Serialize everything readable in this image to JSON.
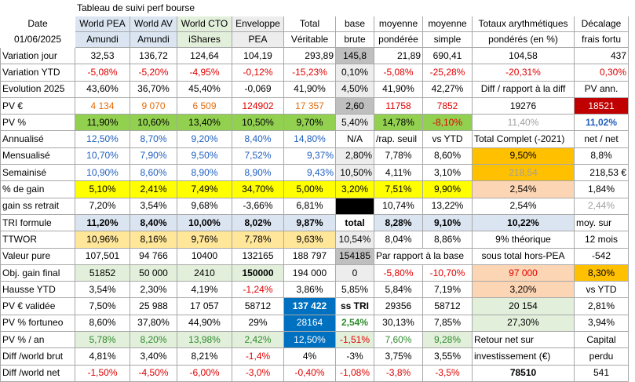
{
  "title": "Tableau de suivi perf bourse",
  "header": {
    "r1": [
      "Date",
      "World PEA",
      "World AV",
      "World CTO",
      "Enveloppe",
      "Total",
      "base",
      "moyenne",
      "moyenne",
      "Totaux arythmétiques",
      "Décalage"
    ],
    "r2": [
      "01/06/2025",
      "Amundi",
      "Amundi",
      "iShares",
      "PEA",
      "Véritable",
      "brute",
      "pondérée",
      "simple",
      "pondérés (en %)",
      "frais fortu"
    ]
  },
  "rows": [
    [
      "Variation jour",
      "32,53",
      "136,72",
      "124,64",
      "104,19",
      "293,89",
      "145,8",
      "21,89",
      "690,41",
      "104,58",
      "437"
    ],
    [
      "Variation YTD",
      "-5,08%",
      "-5,20%",
      "-4,95%",
      "-0,12%",
      "-15,23%",
      "0,10%",
      "-5,08%",
      "-25,28%",
      "-20,31%",
      "0,30%"
    ],
    [
      "Evolution 2025",
      "43,60%",
      "36,70%",
      "45,40%",
      "-0,069",
      "41,90%",
      "4,50%",
      "41,90%",
      "42,27%",
      "Diff / rapport à la diff",
      "PV ann."
    ],
    [
      "PV €",
      "4 134",
      "9 070",
      "6 509",
      "124902",
      "17 357",
      "2,60",
      "11758",
      "7852",
      "19276",
      "18521"
    ],
    [
      "PV %",
      "11,90%",
      "10,60%",
      "13,40%",
      "10,50%",
      "9,70%",
      "5,40%",
      "14,78%",
      "-8,10%",
      "11,40%",
      "11,02%"
    ],
    [
      "Annualisé",
      "12,50%",
      "8,70%",
      "9,20%",
      "8,40%",
      "14,80%",
      "N/A",
      "/rap. seuil",
      "vs YTD",
      "Total Complet (-2021)",
      "net / net"
    ],
    [
      "Mensualisé",
      "10,70%",
      "7,90%",
      "9,50%",
      "7,52%",
      "9,37%",
      "2,80%",
      "7,78%",
      "8,60%",
      "9,50%",
      "8,8%"
    ],
    [
      "Semainisé",
      "10,90%",
      "8,60%",
      "8,90%",
      "8,90%",
      "9,43%",
      "10,50%",
      "4,11%",
      "3,10%",
      "218,54",
      "218,53 €"
    ],
    [
      "% de gain",
      "5,10%",
      "2,41%",
      "7,49%",
      "34,70%",
      "5,00%",
      "3,20%",
      "7,51%",
      "9,90%",
      "2,54%",
      "1,84%"
    ],
    [
      "gain ss retrait",
      "7,20%",
      "3,54%",
      "9,68%",
      "-3,66%",
      "6,81%",
      "",
      "10,74%",
      "13,22%",
      "2,54%",
      "2,44%"
    ],
    [
      "TRI formule",
      "11,20%",
      "8,40%",
      "10,00%",
      "8,02%",
      "9,87%",
      "total",
      "8,28%",
      "9,10%",
      "10,22%",
      "moy. sur"
    ],
    [
      "TTWOR",
      "10,96%",
      "8,16%",
      "9,76%",
      "7,78%",
      "9,63%",
      "10,54%",
      "8,04%",
      "8,86%",
      "9% théorique",
      "12 mois"
    ],
    [
      "Valeur pure",
      "107,501",
      "94 766",
      "10400",
      "132165",
      "188 797",
      "154185",
      "Par rapport à la base",
      "",
      "sous total hors-PEA",
      "-542"
    ],
    [
      "Obj. gain final",
      "51852",
      "50 000",
      "2410",
      "150000",
      "194 000",
      "0",
      "-5,80%",
      "-10,70%",
      "97 000",
      "8,30%"
    ],
    [
      "Hausse YTD",
      "3,54%",
      "2,30%",
      "4,19%",
      "-1,24%",
      "3,86%",
      "5,85%",
      "5,84%",
      "7,19%",
      "3,20%",
      "vs YTD"
    ],
    [
      "PV € validée",
      "7,50%",
      "25 988",
      "17 057",
      "58712",
      "137 422",
      "ss TRI",
      "29356",
      "58712",
      "20 154",
      "2,81%"
    ],
    [
      "PV % fortuneo",
      "8,60%",
      "37,80%",
      "44,90%",
      "29%",
      "28164",
      "2,54%",
      "30,13%",
      "7,85%",
      "27,30%",
      "3,94%"
    ],
    [
      "PV % / an",
      "5,78%",
      "8,20%",
      "13,98%",
      "2,42%",
      "12,50%",
      "-1,51%",
      "7,60%",
      "9,28%",
      "Retour net sur",
      "Capital"
    ],
    [
      "Diff /world brut",
      "4,81%",
      "3,40%",
      "8,21%",
      "-1,4%",
      "4%",
      "-3%",
      "3,75%",
      "3,55%",
      "investissement (€)",
      "perdu"
    ],
    [
      "Diff /world net",
      "-1,50%",
      "-4,50%",
      "-6,00%",
      "-3,0%",
      "-0,40%",
      "-1,08%",
      "-3,8%",
      "-3,5%",
      "78510",
      "541"
    ]
  ]
}
